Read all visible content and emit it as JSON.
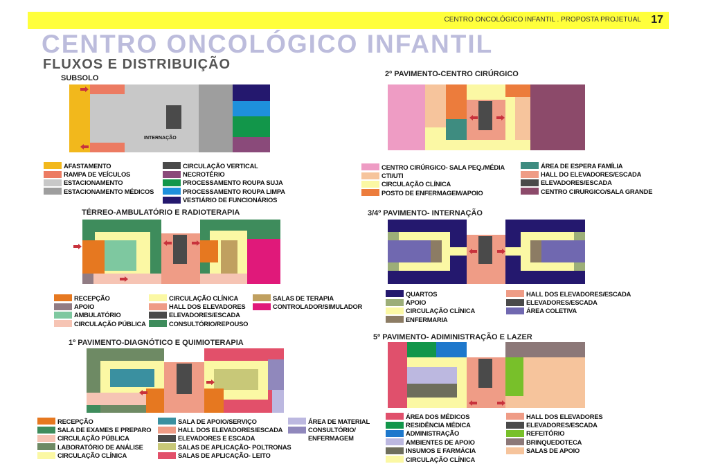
{
  "header": {
    "title": "CENTRO ONCOLÓGICO INFANTIL . PROPOSTA PROJETUAL",
    "page": "17"
  },
  "title": "CENTRO ONCOLÓGICO INFANTIL",
  "subtitle": "FLUXOS E DISTRIBUIÇÃO",
  "colors": {
    "header": "#ffff3b",
    "title": "#bcbcdc",
    "arrow": "#c8323c"
  },
  "sections": {
    "subsolo": {
      "label": "SUBSOLO",
      "room_label": "INTERNAÇÃO",
      "legend_left": [
        {
          "label": "AFASTAMENTO",
          "color": "#f2b81c"
        },
        {
          "label": "RAMPA DE VEÍCULOS",
          "color": "#ec7b62"
        },
        {
          "label": "ESTACIONAMENTO",
          "color": "#c8c8c8"
        },
        {
          "label": "ESTACIONAMENTO MÉDICOS",
          "color": "#9e9e9e"
        }
      ],
      "legend_right": [
        {
          "label": "CIRCULAÇÃO VERTICAL",
          "color": "#4a4a4a"
        },
        {
          "label": "NECROTÉRIO",
          "color": "#8a4a7a"
        },
        {
          "label": "PROCESSAMENTO ROUPA SUJA",
          "color": "#12964a"
        },
        {
          "label": "PROCESSAMENTO ROUPA LIMPA",
          "color": "#1e90dc"
        },
        {
          "label": "VESTIÁRIO DE FUNCIONÁRIOS",
          "color": "#24186e"
        }
      ]
    },
    "terreo": {
      "label": "TÉRREO-AMBULATÓRIO E RADIOTERAPIA",
      "legend_a": [
        {
          "label": "RECEPÇÃO",
          "color": "#e67820"
        },
        {
          "label": "APOIO",
          "color": "#917c84"
        },
        {
          "label": "AMBULATÓRIO",
          "color": "#7ec8a0"
        },
        {
          "label": "CIRCULAÇÃO PÚBLICA",
          "color": "#f6c4b4"
        }
      ],
      "legend_b": [
        {
          "label": "CIRCULAÇÃO CLÍNICA",
          "color": "#fbf8a4"
        },
        {
          "label": "HALL DOS ELEVADORES",
          "color": "#ef9c86"
        },
        {
          "label": "ELEVADORES/ESCADA",
          "color": "#4a4a4a"
        },
        {
          "label": "CONSULTÓRIO/REPOUSO",
          "color": "#3e8c5c"
        }
      ],
      "legend_c": [
        {
          "label": "SALAS DE TERAPIA",
          "color": "#c0a060"
        },
        {
          "label": "CONTROLADOR/SIMULADOR",
          "color": "#e0197a"
        }
      ]
    },
    "primeiro": {
      "label": "1º PAVIMENTO-DIAGNÓTICO E QUIMIOTERAPIA",
      "legend_a": [
        {
          "label": "RECEPÇÃO",
          "color": "#e67820"
        },
        {
          "label": "SALA DE EXAMES E PREPARO",
          "color": "#3e8c5c"
        },
        {
          "label": "CIRCULAÇÃO PÚBLICA",
          "color": "#f6c4b4"
        },
        {
          "label": "LABORATÓRIO DE ANÁLISE",
          "color": "#6e8a64"
        },
        {
          "label": "CIRCULAÇÃO CLÍNICA",
          "color": "#fbf8a4"
        }
      ],
      "legend_b": [
        {
          "label": "SALA DE APOIO/SERVIÇO",
          "color": "#3a90a0"
        },
        {
          "label": "HALL DOS ELEVADORES/ESCADA",
          "color": "#ef9c86"
        },
        {
          "label": "ELEVADORES E ESCADA",
          "color": "#4a4a4a"
        },
        {
          "label": "SALAS DE APLICAÇÃO- POLTRONAS",
          "color": "#c8c878"
        },
        {
          "label": "SALAS DE APLICAÇÃO- LEITO",
          "color": "#e2506a"
        }
      ],
      "legend_c": [
        {
          "label": "ÁREA DE MATERIAL",
          "color": "#bcb8e0"
        },
        {
          "label": "CONSULTÓRIO/",
          "color": "#9088bc"
        },
        {
          "label": "ENFERMAGEM",
          "color": ""
        }
      ]
    },
    "segundo": {
      "label": "2º PAVIMENTO-CENTRO CIRÚRGICO",
      "legend_a": [
        {
          "label": "CENTRO CIRÚRGICO- SALA PEQ./MÉDIA",
          "color": "#ee9cc4"
        },
        {
          "label": "CTI/UTI",
          "color": "#f6c49c"
        },
        {
          "label": "CIRCULAÇÃO CLÍNICA",
          "color": "#fbf8a4"
        },
        {
          "label": "POSTO DE ENFERMAGEM/APOIO",
          "color": "#ec7c3c"
        }
      ],
      "legend_b": [
        {
          "label": "ÁREA DE ESPERA FAMÍLIA",
          "color": "#3e8c80"
        },
        {
          "label": "HALL DO ELEVADORES/ESCADA",
          "color": "#ef9c86"
        },
        {
          "label": "ELEVADORES/ESCADA",
          "color": "#4a4a4a"
        },
        {
          "label": "CENTRO CIRURGICO/SALA GRANDE",
          "color": "#8c4a6a"
        }
      ]
    },
    "terceiro": {
      "label": "3/4º PAVIMENTO- INTERNAÇÃO",
      "legend_a": [
        {
          "label": "QUARTOS",
          "color": "#24186e"
        },
        {
          "label": "APOIO",
          "color": "#9cae78"
        },
        {
          "label": "CIRCULAÇÃO CLÍNICA",
          "color": "#fbf8a4"
        },
        {
          "label": "ENFERMARIA",
          "color": "#8c7c64"
        }
      ],
      "legend_b": [
        {
          "label": "HALL DOS ELEVADORES/ESCADA",
          "color": "#ef9c86"
        },
        {
          "label": "ELEVADORES/ESCADA",
          "color": "#4a4a4a"
        },
        {
          "label": "ÁREA COLETIVA",
          "color": "#7068b0"
        }
      ]
    },
    "quinto": {
      "label": "5º PAVIMENTO- ADIMINISTRAÇÃO E LAZER",
      "legend_a": [
        {
          "label": "ÁREA DOS MÉDICOS",
          "color": "#e0506c"
        },
        {
          "label": "RESIDÊNCIA MÉDICA",
          "color": "#12964a"
        },
        {
          "label": "ADMINISTRAÇÃO",
          "color": "#1e78cc"
        },
        {
          "label": "AMBIENTES DE APOIO",
          "color": "#bcb8e0"
        },
        {
          "label": "INSUMOS E FARMÁCIA",
          "color": "#6e6e5c"
        },
        {
          "label": "CIRCULAÇÃO CLÍNICA",
          "color": "#fbf8a4"
        }
      ],
      "legend_b": [
        {
          "label": "HALL DOS ELEVADORES",
          "color": "#ef9c86"
        },
        {
          "label": "ELEVADORES/ESCADA",
          "color": "#4a4a4a"
        },
        {
          "label": "REFEITÓRIO",
          "color": "#78c02a"
        },
        {
          "label": "BRINQUEDOTECA",
          "color": "#8c7878"
        },
        {
          "label": "SALAS DE APOIO",
          "color": "#f6c49c"
        }
      ]
    }
  }
}
